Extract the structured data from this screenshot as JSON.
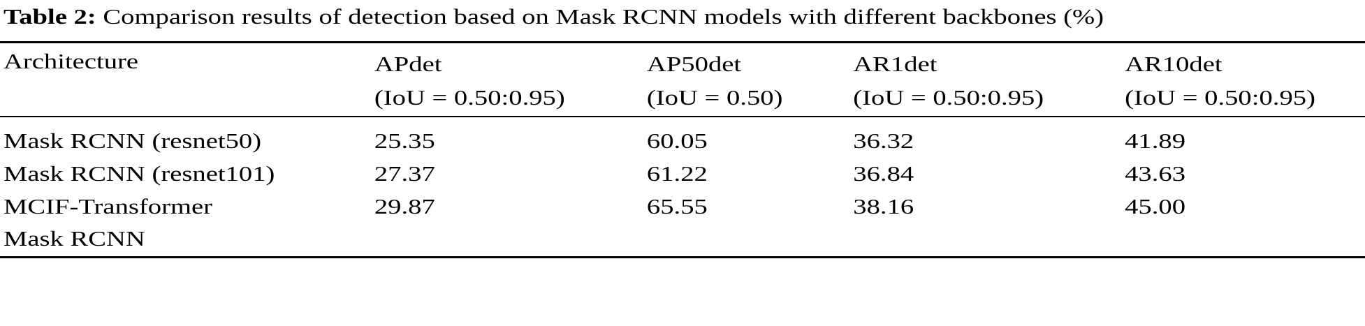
{
  "caption": {
    "label": "Table 2:",
    "text": " Comparison results of detection based on Mask RCNN models with different backbones (%)"
  },
  "table": {
    "headers": [
      {
        "name": "Architecture",
        "sub": ""
      },
      {
        "name": "APdet",
        "sub": "(IoU = 0.50:0.95)"
      },
      {
        "name": "AP50det",
        "sub": "(IoU = 0.50)"
      },
      {
        "name": "AR1det",
        "sub": "(IoU = 0.50:0.95)"
      },
      {
        "name": "AR10det",
        "sub": "(IoU = 0.50:0.95)"
      }
    ],
    "rows": [
      {
        "arch": "Mask RCNN (resnet50)",
        "arch2": "",
        "values": [
          "25.35",
          "60.05",
          "36.32",
          "41.89"
        ]
      },
      {
        "arch": "Mask RCNN (resnet101)",
        "arch2": "",
        "values": [
          "27.37",
          "61.22",
          "36.84",
          "43.63"
        ]
      },
      {
        "arch": "MCIF-Transformer",
        "arch2": "Mask RCNN",
        "values": [
          "29.87",
          "65.55",
          "38.16",
          "45.00"
        ]
      }
    ]
  }
}
